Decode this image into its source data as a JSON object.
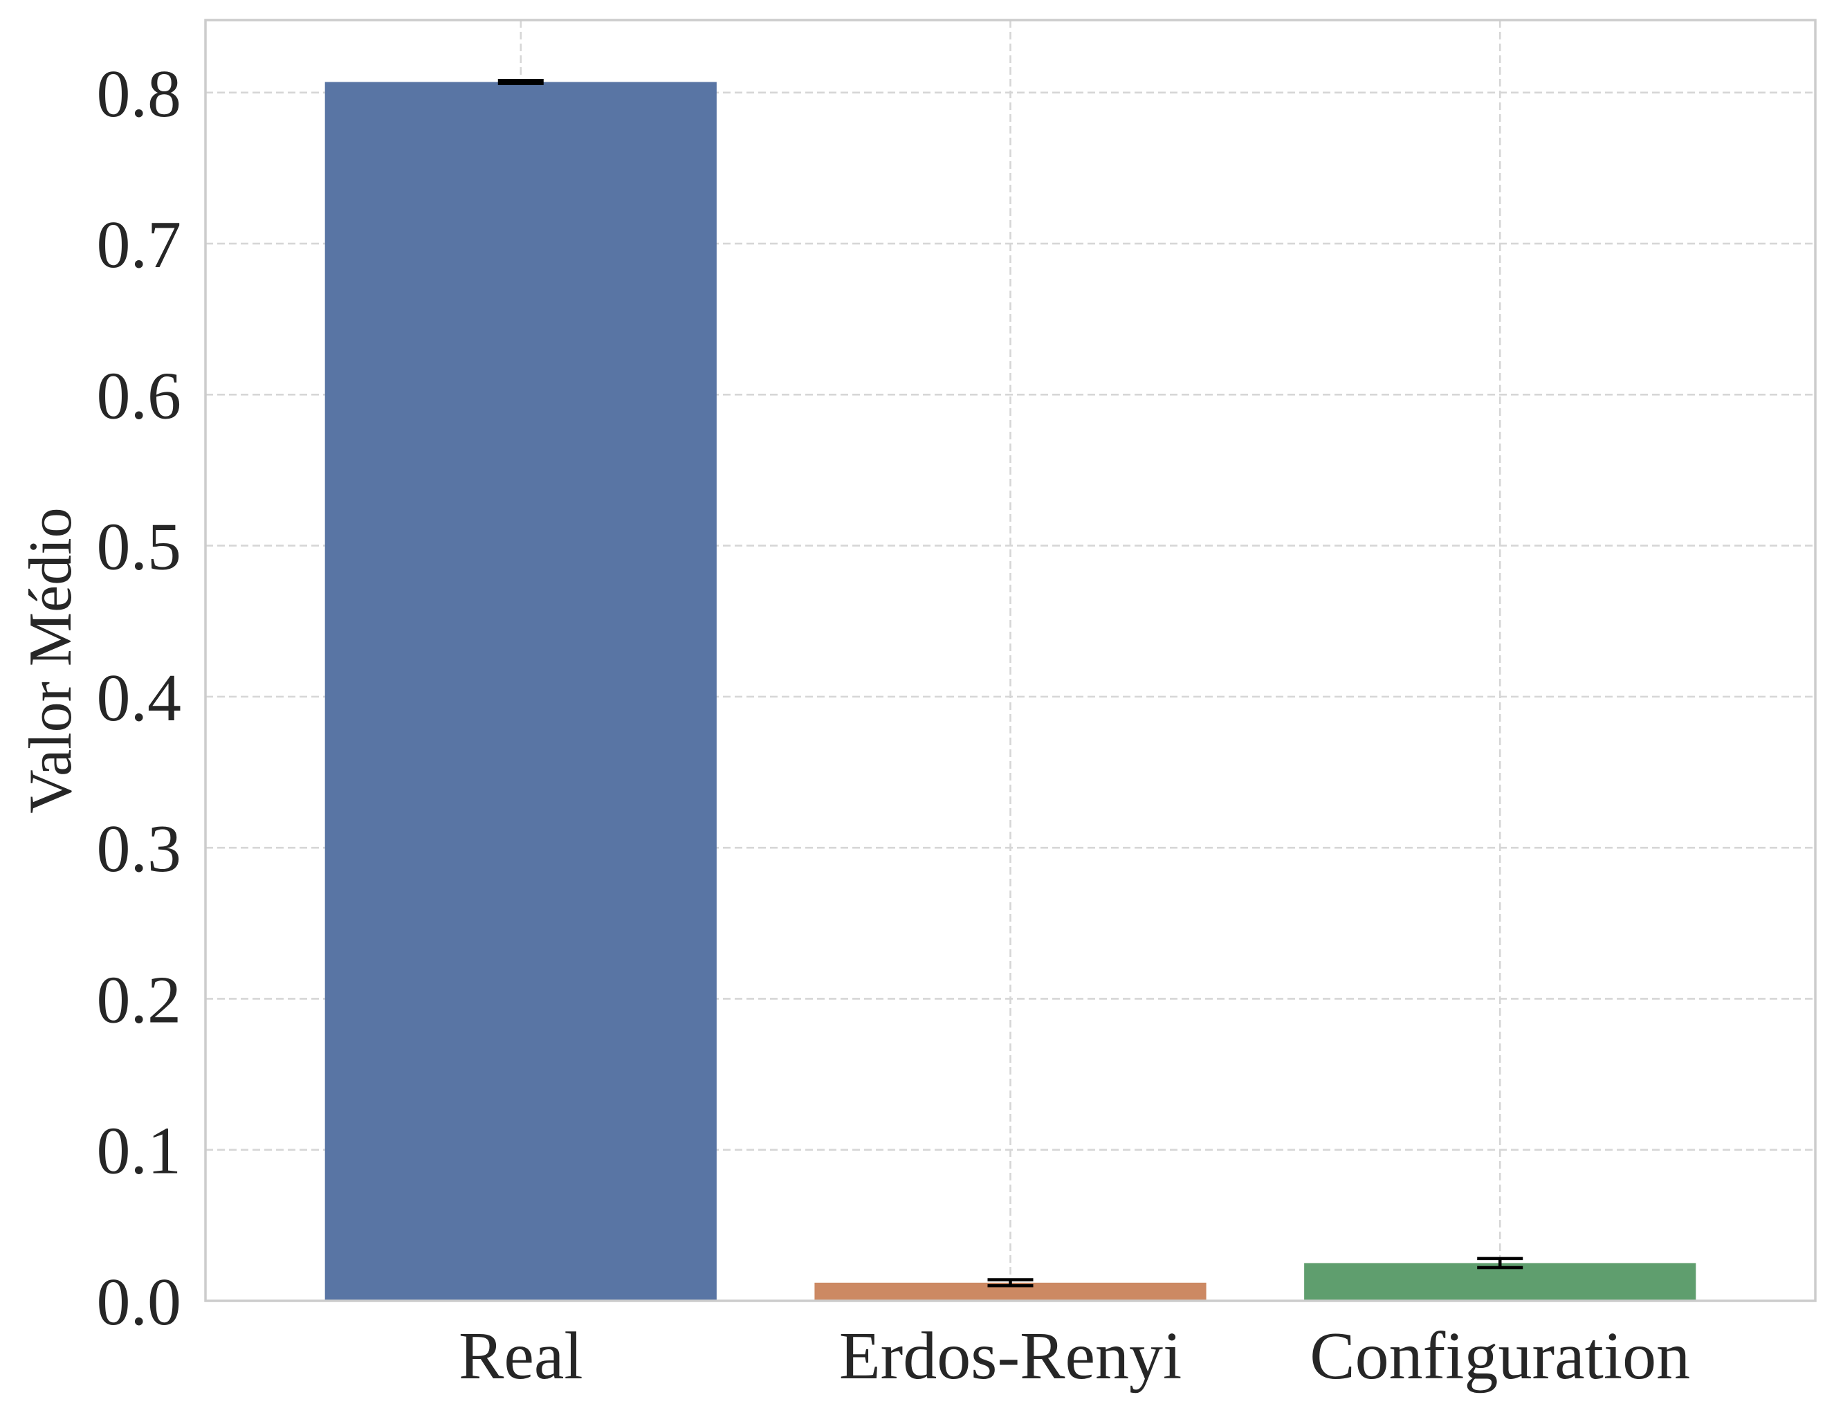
{
  "chart_data": {
    "type": "bar",
    "title": "",
    "xlabel": "",
    "ylabel": "Valor Médio",
    "categories": [
      "Real",
      "Erdos-Renyi",
      "Configuration"
    ],
    "values": [
      0.807,
      0.012,
      0.025
    ],
    "errors": [
      0.001,
      0.002,
      0.003
    ],
    "colors": [
      "#5975a4",
      "#cc8963",
      "#5f9e6e"
    ],
    "error_color": "#000000",
    "ylim": [
      0.0,
      0.848
    ],
    "yticks": [
      0.0,
      0.1,
      0.2,
      0.3,
      0.4,
      0.5,
      0.6,
      0.7,
      0.8
    ],
    "ytick_labels": [
      "0.0",
      "0.1",
      "0.2",
      "0.3",
      "0.4",
      "0.5",
      "0.6",
      "0.7",
      "0.8"
    ],
    "grid": true,
    "legend": "none"
  }
}
